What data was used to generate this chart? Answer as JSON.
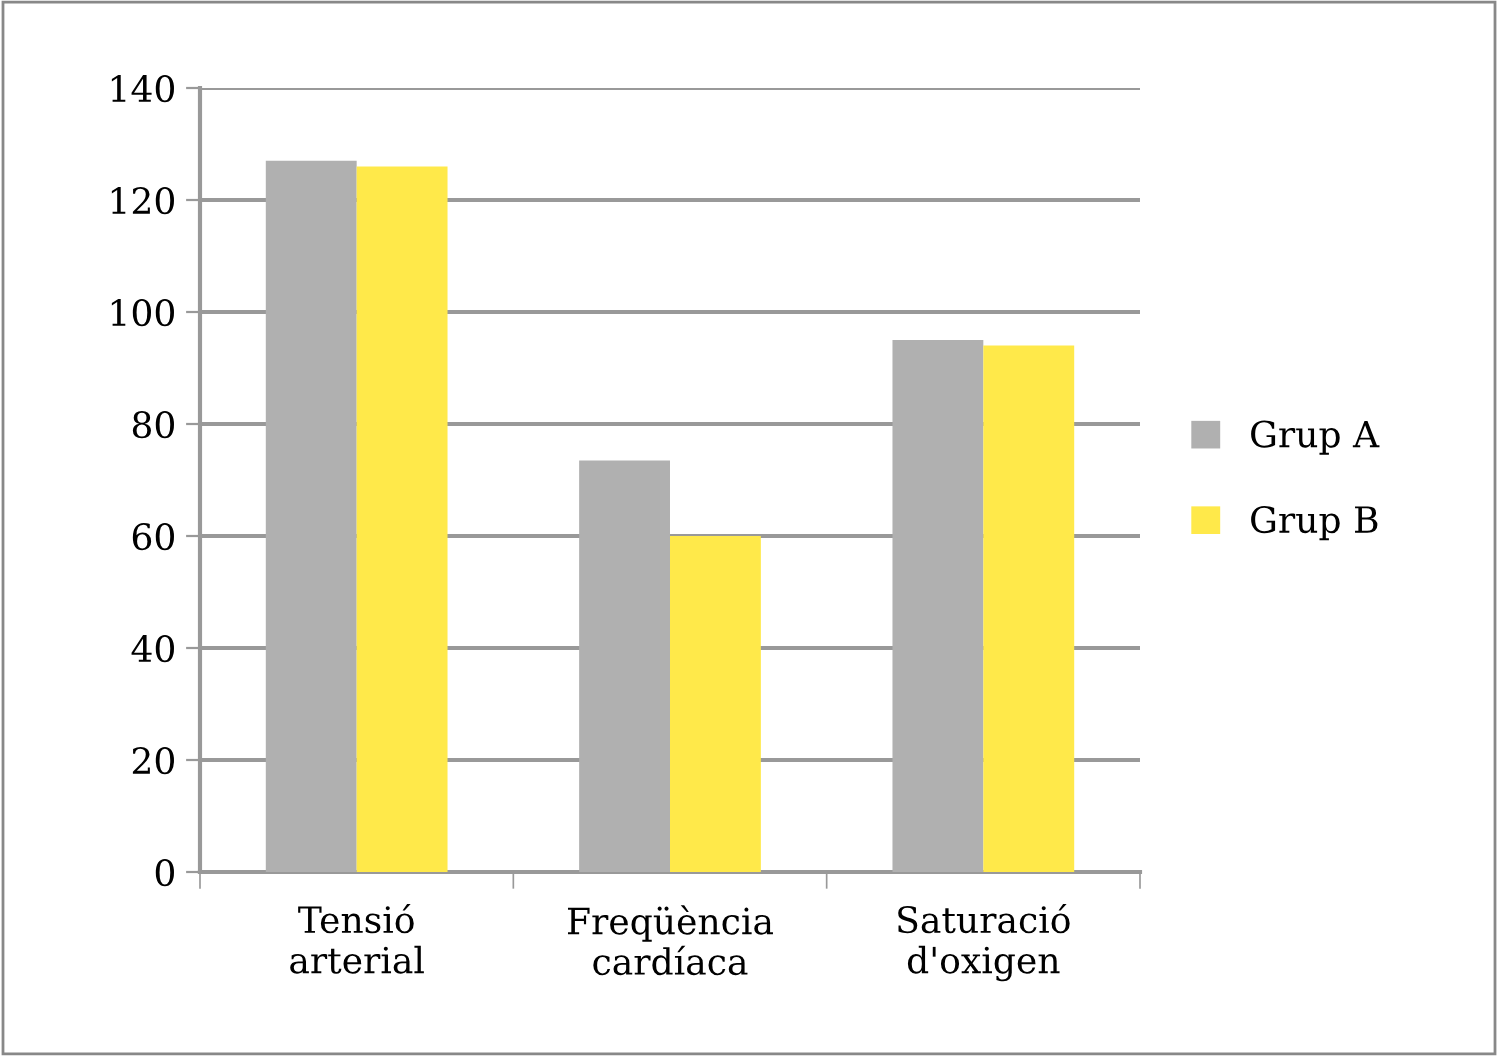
{
  "chart_data": {
    "type": "bar",
    "categories": [
      "Tensió\narterial",
      "Freqüència\ncardíaca",
      "Saturació\nd'oxigen"
    ],
    "series": [
      {
        "name": "Grup A",
        "color": "#b0b0b0",
        "values": [
          127,
          73.5,
          95
        ]
      },
      {
        "name": "Grup B",
        "color": "#ffe94a",
        "values": [
          126,
          60,
          94
        ]
      }
    ],
    "ylim": [
      0,
      140
    ],
    "yticks": [
      0,
      20,
      40,
      60,
      80,
      100,
      120,
      140
    ],
    "grid": "y",
    "legend": "right"
  }
}
